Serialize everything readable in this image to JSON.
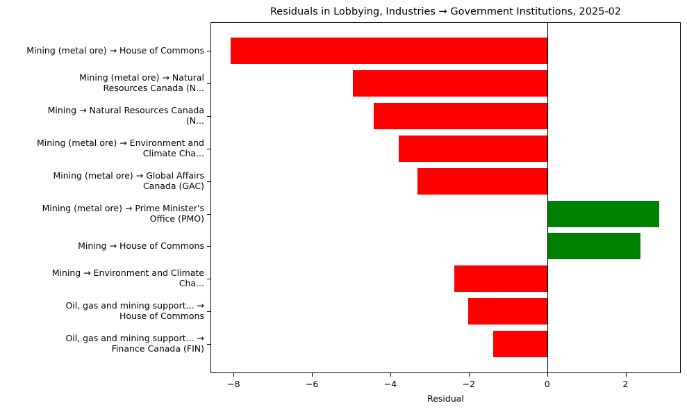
{
  "chart_data": {
    "type": "bar",
    "orientation": "horizontal",
    "title": "Residuals in Lobbying, Industries → Government Institutions, 2025-02",
    "xlabel": "Residual",
    "ylabel": "",
    "xlim": [
      -8.6,
      3.4
    ],
    "xticks": [
      -8,
      -6,
      -4,
      -2,
      0,
      2
    ],
    "xtick_labels": [
      "−8",
      "−6",
      "−4",
      "−2",
      "0",
      "2"
    ],
    "grid": false,
    "legend": null,
    "zero_line": true,
    "colors": {
      "negative": "#ff0000",
      "positive": "#008000"
    },
    "categories": [
      "Mining (metal ore) → House of Commons",
      "Mining (metal ore) → Natural\nResources Canada (N...",
      "Mining → Natural Resources Canada\n(N...",
      "Mining (metal ore) → Environment and\nClimate Cha...",
      "Mining (metal ore) → Global Affairs\nCanada (GAC)",
      "Mining (metal ore) → Prime Minister's\nOffice (PMO)",
      "Mining → House of Commons",
      "Mining → Environment and Climate\nCha...",
      "Oil, gas and mining support... →\nHouse of Commons",
      "Oil, gas and mining support... →\nFinance Canada (FIN)"
    ],
    "values": [
      -8.08,
      -4.97,
      -4.44,
      -3.8,
      -3.32,
      2.85,
      2.37,
      -2.37,
      -2.02,
      -1.38
    ]
  }
}
